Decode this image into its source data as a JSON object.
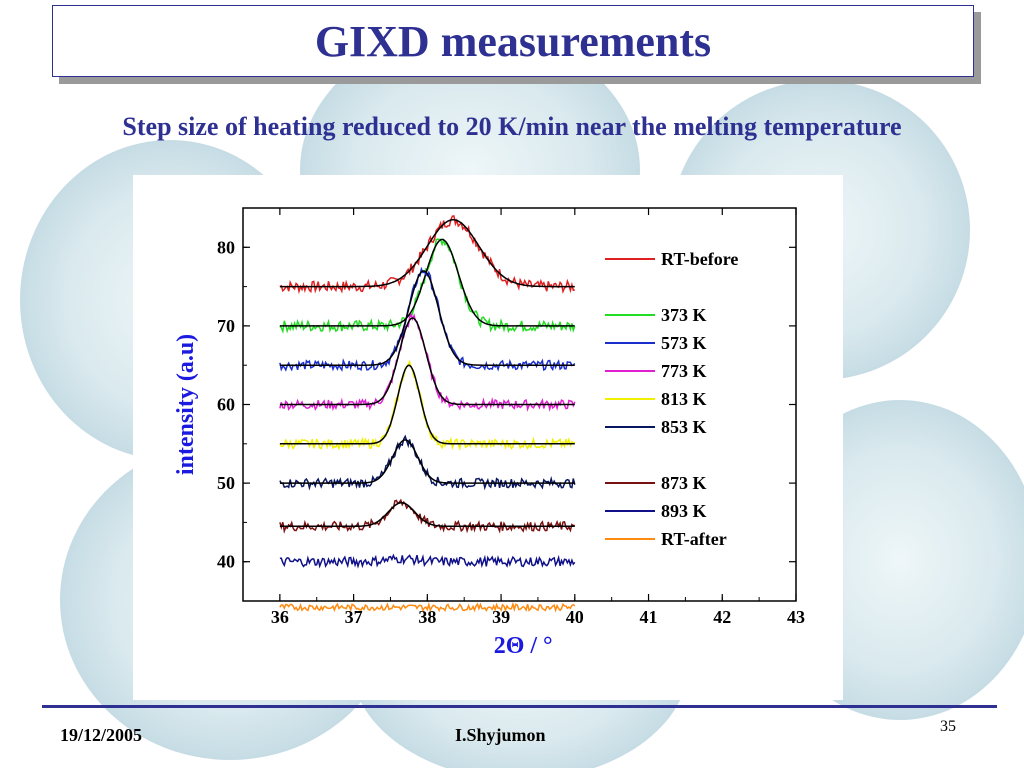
{
  "slide": {
    "title": "GIXD measurements",
    "subtitle": "Step size of heating reduced to 20 K/min near the melting temperature",
    "footer_date": "19/12/2005",
    "footer_author": "I.Shyjumon",
    "page_number": "35",
    "colors": {
      "accent": "#2e3192",
      "bubble": "#cfe3ea"
    }
  },
  "chart_data": {
    "type": "line",
    "xlabel": "2Θ / °",
    "ylabel": "intensity (a.u)",
    "xlim": [
      35.5,
      43
    ],
    "ylim": [
      35,
      85
    ],
    "xticks": [
      "36",
      "37",
      "38",
      "39",
      "40",
      "41",
      "42",
      "43"
    ],
    "yticks": [
      "40",
      "50",
      "60",
      "70",
      "80"
    ],
    "x_range": [
      36,
      40
    ],
    "legend_position": "right",
    "fit_line_color": "#000000",
    "series": [
      {
        "name": "RT-before",
        "color": "#e02020",
        "baseline": 75,
        "peak_center": 38.35,
        "peak_height": 8.5,
        "peak_width": 0.35,
        "noise": 0.7,
        "fit": true
      },
      {
        "name": "373 K",
        "color": "#22dd22",
        "baseline": 70,
        "peak_center": 38.2,
        "peak_height": 11,
        "peak_width": 0.22,
        "noise": 0.7,
        "fit": true
      },
      {
        "name": "573 K",
        "color": "#1a2ecc",
        "baseline": 65,
        "peak_center": 37.95,
        "peak_height": 12,
        "peak_width": 0.2,
        "noise": 0.6,
        "fit": true
      },
      {
        "name": "773 K",
        "color": "#e020d0",
        "baseline": 60,
        "peak_center": 37.8,
        "peak_height": 11,
        "peak_width": 0.18,
        "noise": 0.6,
        "fit": true
      },
      {
        "name": "813 K",
        "color": "#f0f000",
        "baseline": 55,
        "peak_center": 37.75,
        "peak_height": 10,
        "peak_width": 0.15,
        "noise": 0.6,
        "fit": true
      },
      {
        "name": "853 K",
        "color": "#0a1660",
        "baseline": 50,
        "peak_center": 37.7,
        "peak_height": 5.5,
        "peak_width": 0.17,
        "noise": 0.6,
        "fit": true
      },
      {
        "name": "873 K",
        "color": "#7a1010",
        "baseline": 44.5,
        "peak_center": 37.65,
        "peak_height": 3,
        "peak_width": 0.18,
        "noise": 0.6,
        "fit": true
      },
      {
        "name": "893 K",
        "color": "#10108a",
        "baseline": 40,
        "peak_center": 37.65,
        "peak_height": 0.4,
        "peak_width": 0.2,
        "noise": 0.6,
        "fit": false
      },
      {
        "name": "RT-after",
        "color": "#ff8a10",
        "baseline": 34.2,
        "peak_center": 37.65,
        "peak_height": 0,
        "peak_width": 0.2,
        "noise": 0.4,
        "fit": false
      }
    ]
  }
}
